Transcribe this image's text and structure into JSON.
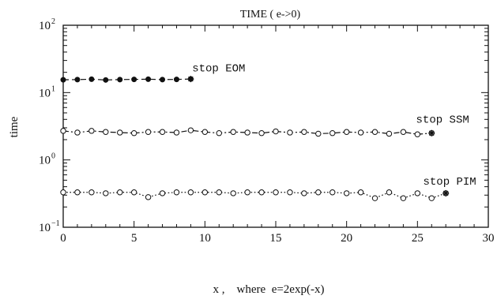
{
  "chart_data": {
    "type": "line",
    "title": "TIME ( e->0)",
    "xlabel": "x ,    where  e=2exp(-x)",
    "ylabel": "time",
    "xlim": [
      0,
      30
    ],
    "ylim": [
      0.1,
      100
    ],
    "y_scale": "log",
    "x_ticks": [
      0,
      5,
      10,
      15,
      20,
      25,
      30
    ],
    "y_ticks": [
      {
        "value": 0.1,
        "base": "10",
        "exp": "−1"
      },
      {
        "value": 1,
        "base": "10",
        "exp": "0"
      },
      {
        "value": 10,
        "base": "10",
        "exp": "1"
      },
      {
        "value": 100,
        "base": "10",
        "exp": "2"
      }
    ],
    "grid": false,
    "colors": {
      "ink": "#111111",
      "background": "#ffffff"
    },
    "series": [
      {
        "marker": "filled-circle",
        "line_style": "dashed",
        "x": [
          0,
          1,
          2,
          3,
          4,
          5,
          6,
          7,
          8,
          9
        ],
        "y": [
          15.5,
          15.6,
          15.8,
          15.4,
          15.6,
          15.7,
          15.8,
          15.6,
          15.7,
          15.9
        ]
      },
      {
        "marker": "open-circle",
        "line_style": "dash-dot",
        "x": [
          0,
          1,
          2,
          3,
          4,
          5,
          6,
          7,
          8,
          9,
          10,
          11,
          12,
          13,
          14,
          15,
          16,
          17,
          18,
          19,
          20,
          21,
          22,
          23,
          24,
          25,
          26
        ],
        "y": [
          2.7,
          2.55,
          2.7,
          2.6,
          2.55,
          2.5,
          2.6,
          2.6,
          2.55,
          2.75,
          2.6,
          2.5,
          2.6,
          2.55,
          2.5,
          2.65,
          2.55,
          2.6,
          2.45,
          2.5,
          2.6,
          2.55,
          2.6,
          2.45,
          2.6,
          2.4,
          2.5
        ]
      },
      {
        "marker": "open-circle",
        "line_style": "dotted",
        "x": [
          0,
          1,
          2,
          3,
          4,
          5,
          6,
          7,
          8,
          9,
          10,
          11,
          12,
          13,
          14,
          15,
          16,
          17,
          18,
          19,
          20,
          21,
          22,
          23,
          24,
          25,
          26,
          27
        ],
        "y": [
          0.33,
          0.33,
          0.33,
          0.32,
          0.33,
          0.33,
          0.28,
          0.32,
          0.33,
          0.33,
          0.33,
          0.33,
          0.32,
          0.33,
          0.33,
          0.33,
          0.33,
          0.32,
          0.33,
          0.33,
          0.32,
          0.33,
          0.27,
          0.33,
          0.27,
          0.32,
          0.27,
          0.32
        ]
      }
    ],
    "annotations": [
      {
        "text": "stop EOM",
        "x": 9.1,
        "y": 20.5
      },
      {
        "text": "stop SSM",
        "x": 24.9,
        "y": 3.55
      },
      {
        "text": "stop PIM",
        "x": 25.4,
        "y": 0.43
      }
    ],
    "end_markers": [
      {
        "x": 9,
        "y": 15.9
      },
      {
        "x": 26,
        "y": 2.5
      },
      {
        "x": 27,
        "y": 0.32
      }
    ]
  }
}
